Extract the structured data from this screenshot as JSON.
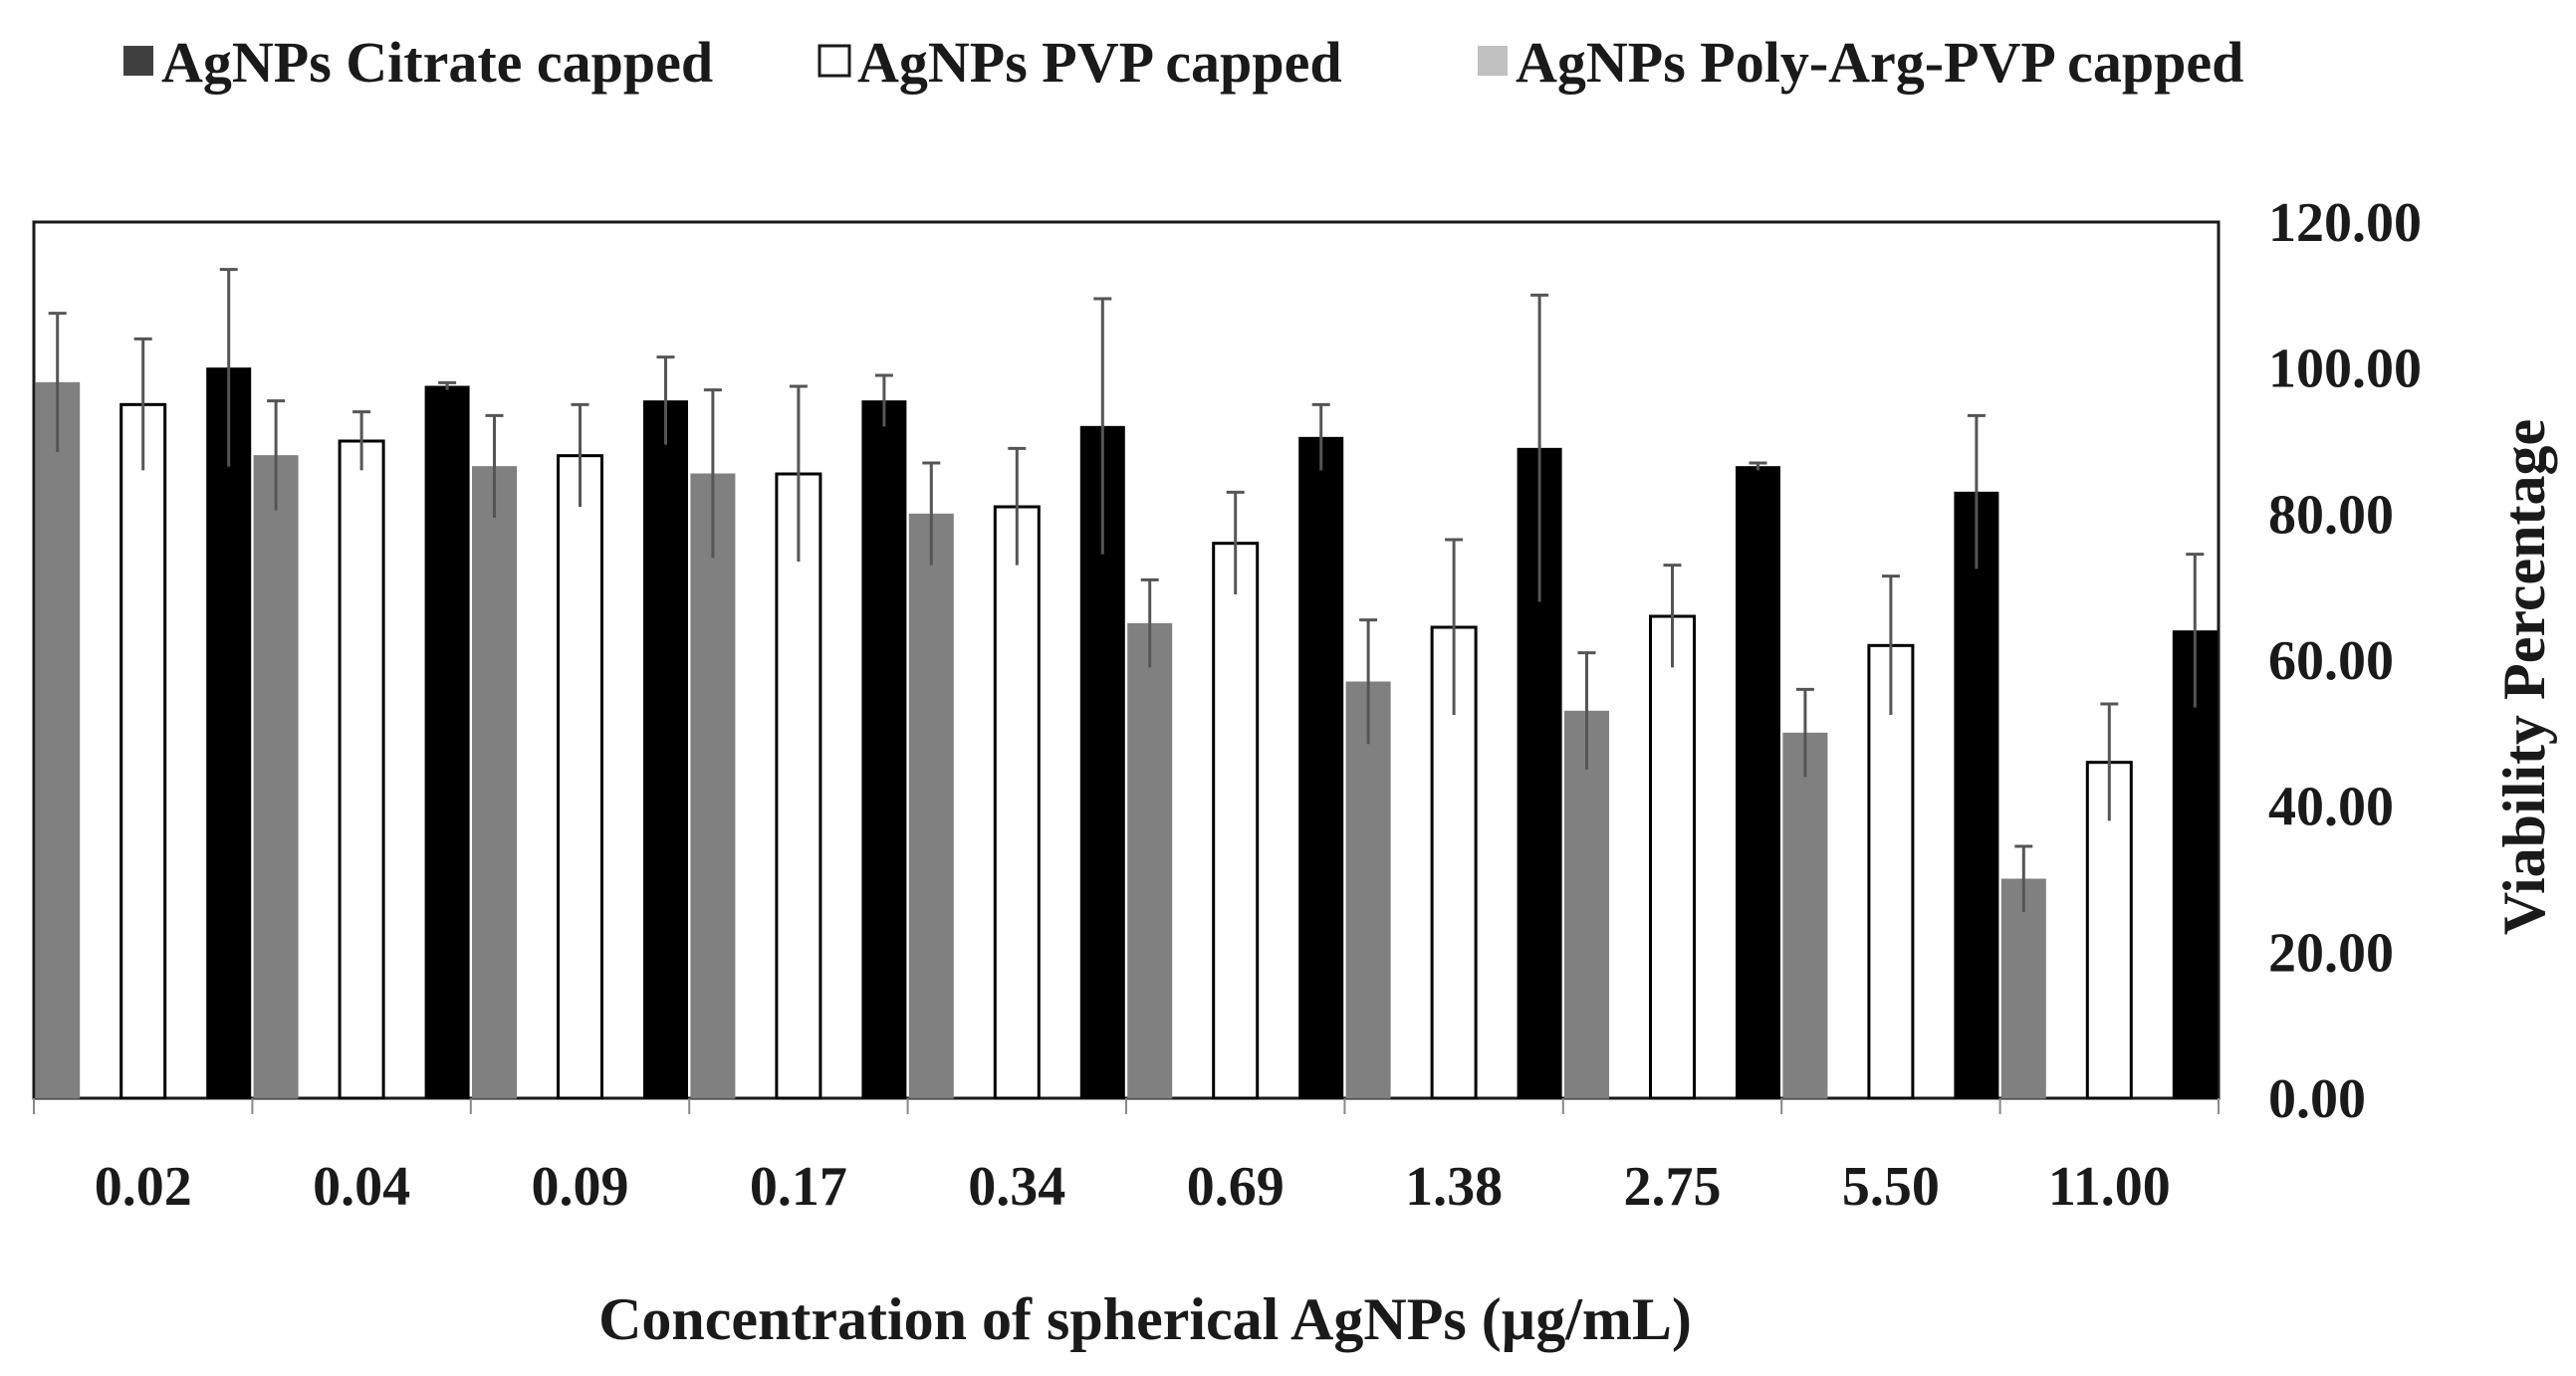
{
  "chart_data": {
    "type": "bar",
    "title": "",
    "xlabel": "Concentration of spherical AgNPs (µg/mL)",
    "ylabel": "Viability Percentage",
    "y_axis_side": "right",
    "ylim": [
      0,
      120
    ],
    "yticks": [
      "0.00",
      "20.00",
      "40.00",
      "60.00",
      "80.00",
      "100.00",
      "120.00"
    ],
    "grid": false,
    "legend_position": "top",
    "categories": [
      "0.02",
      "0.04",
      "0.09",
      "0.17",
      "0.34",
      "0.69",
      "1.38",
      "2.75",
      "5.50",
      "11.00"
    ],
    "series": [
      {
        "name": "AgNPs Poly-Arg-PVP  capped",
        "legend_label": "AgNPs Poly-Arg-PVP  capped",
        "legend_swatch": "#c0c0c0",
        "fill": "#808080",
        "stroke": "#808080",
        "values": [
          98,
          88,
          86.5,
          85.5,
          80,
          65,
          57,
          53,
          50,
          30
        ],
        "errors": [
          9.5,
          7.5,
          7,
          11.5,
          7,
          6,
          8.5,
          8,
          6,
          4.5
        ]
      },
      {
        "name": "AgNPs PVP capped",
        "legend_label": "AgNPs PVP capped",
        "legend_swatch": "#ffffff",
        "fill": "#ffffff",
        "stroke": "#000000",
        "values": [
          95,
          90,
          88,
          85.5,
          81,
          76,
          64.5,
          66,
          62,
          46
        ],
        "errors": [
          9,
          4,
          7,
          12,
          8,
          7,
          12,
          7,
          9.5,
          8
        ]
      },
      {
        "name": "AgNPs Citrate capped",
        "legend_label": "AgNPs Citrate capped",
        "legend_swatch": "#404040",
        "fill": "#000000",
        "stroke": "#000000",
        "values": [
          100,
          97.5,
          95.5,
          95.5,
          92,
          90.5,
          89,
          86.5,
          83,
          64
        ],
        "errors": [
          13.5,
          0.5,
          6,
          3.5,
          17.5,
          4.5,
          21,
          0.5,
          10.5,
          10.5
        ]
      }
    ],
    "legend_order": [
      "AgNPs Citrate capped",
      "AgNPs PVP capped",
      "AgNPs Poly-Arg-PVP  capped"
    ]
  }
}
